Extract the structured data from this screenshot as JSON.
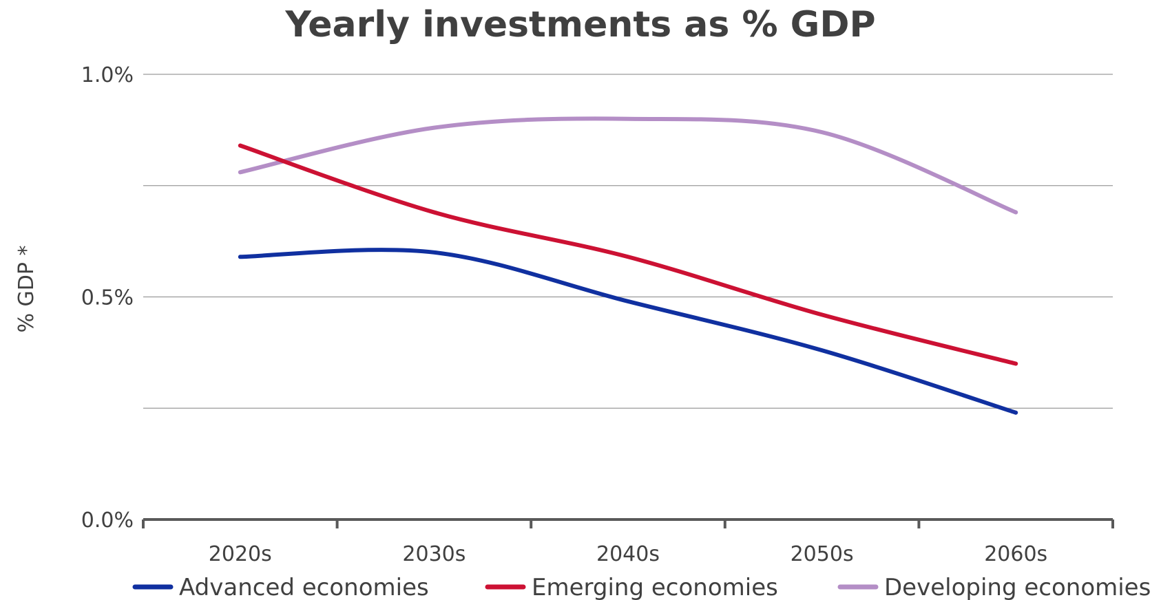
{
  "chart_data": {
    "type": "line",
    "title": "Yearly investments as % GDP",
    "xlabel": "",
    "ylabel": "% GDP *",
    "categories": [
      "2020s",
      "2030s",
      "2040s",
      "2050s",
      "2060s"
    ],
    "ylim": [
      0,
      1.0
    ],
    "y_ticks": [
      {
        "value": 0.0,
        "label": "0.0%"
      },
      {
        "value": 0.5,
        "label": "0.5%"
      },
      {
        "value": 1.0,
        "label": "1.0%"
      }
    ],
    "y_gridlines": [
      0.25,
      0.5,
      0.75,
      1.0
    ],
    "grid": true,
    "smooth": true,
    "legend_position": "bottom",
    "series": [
      {
        "name": "Advanced economies",
        "color": "#1030a0",
        "values": [
          0.59,
          0.6,
          0.49,
          0.38,
          0.24
        ]
      },
      {
        "name": "Emerging economies",
        "color": "#cc1133",
        "values": [
          0.84,
          0.69,
          0.59,
          0.46,
          0.35
        ]
      },
      {
        "name": "Developing economies",
        "color": "#b48ec6",
        "values": [
          0.78,
          0.88,
          0.9,
          0.87,
          0.69
        ]
      }
    ]
  }
}
